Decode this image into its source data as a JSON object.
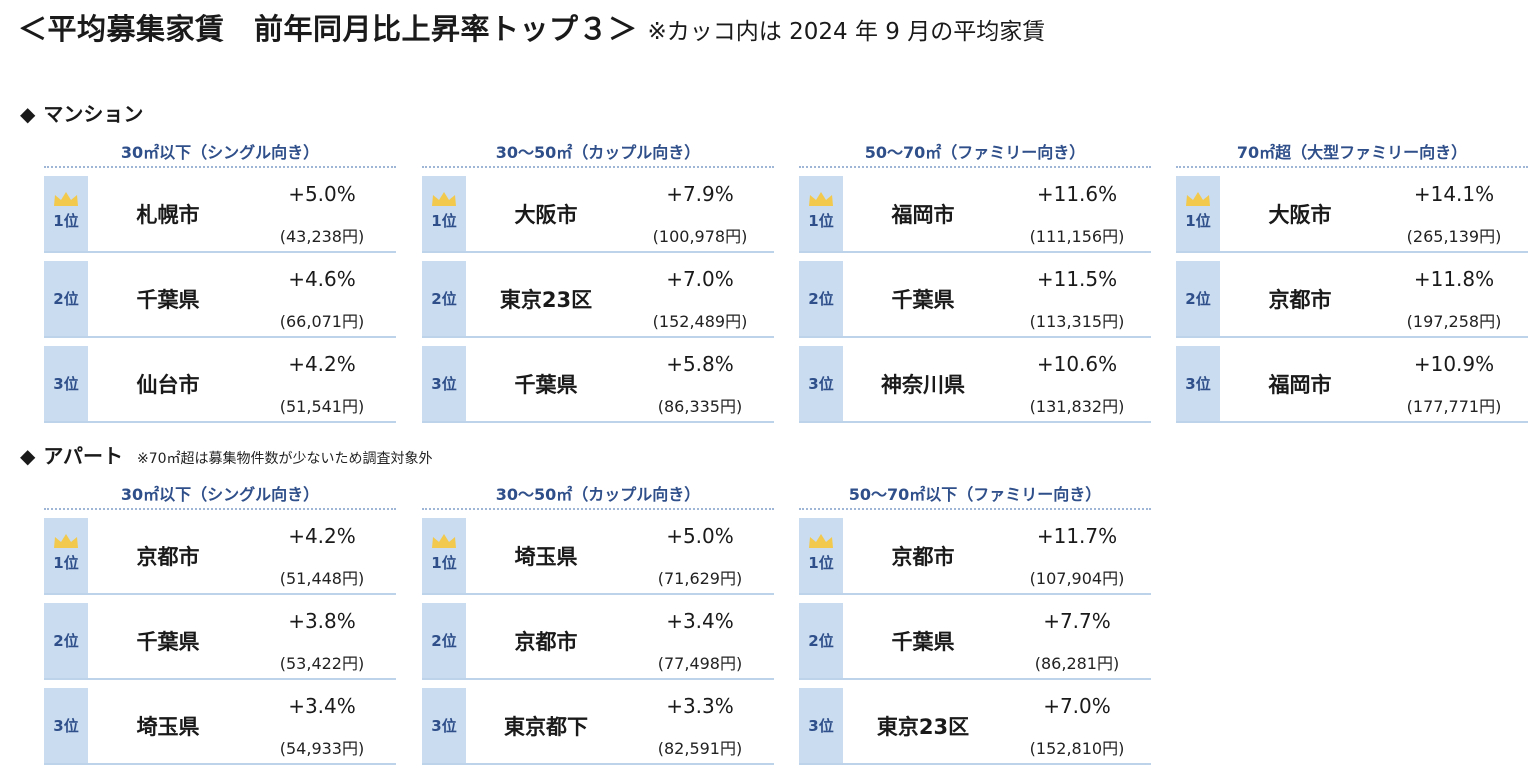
{
  "title": {
    "main": "＜平均募集家賃　前年同月比上昇率トップ３＞",
    "note": "※カッコ内は 2024 年 9 月の平均家賃"
  },
  "colors": {
    "accent": "#2f4f8a",
    "badge_bg": "#c9dcf0",
    "crown": "#f2c94c",
    "rule": "#bcd3ea"
  },
  "sections": [
    {
      "title": "マンション",
      "note": "",
      "groups": [
        {
          "header": "30㎡以下（シングル向き）",
          "rows": [
            {
              "rank": "1位",
              "name": "札幌市",
              "rate": "+5.0%",
              "rent": "(43,238円)"
            },
            {
              "rank": "2位",
              "name": "千葉県",
              "rate": "+4.6%",
              "rent": "(66,071円)"
            },
            {
              "rank": "3位",
              "name": "仙台市",
              "rate": "+4.2%",
              "rent": "(51,541円)"
            }
          ]
        },
        {
          "header": "30～50㎡（カップル向き）",
          "rows": [
            {
              "rank": "1位",
              "name": "大阪市",
              "rate": "+7.9%",
              "rent": "(100,978円)"
            },
            {
              "rank": "2位",
              "name": "東京23区",
              "rate": "+7.0%",
              "rent": "(152,489円)"
            },
            {
              "rank": "3位",
              "name": "千葉県",
              "rate": "+5.8%",
              "rent": "(86,335円)"
            }
          ]
        },
        {
          "header": "50～70㎡（ファミリー向き）",
          "rows": [
            {
              "rank": "1位",
              "name": "福岡市",
              "rate": "+11.6%",
              "rent": "(111,156円)"
            },
            {
              "rank": "2位",
              "name": "千葉県",
              "rate": "+11.5%",
              "rent": "(113,315円)"
            },
            {
              "rank": "3位",
              "name": "神奈川県",
              "rate": "+10.6%",
              "rent": "(131,832円)"
            }
          ]
        },
        {
          "header": "70㎡超（大型ファミリー向き）",
          "rows": [
            {
              "rank": "1位",
              "name": "大阪市",
              "rate": "+14.1%",
              "rent": "(265,139円)"
            },
            {
              "rank": "2位",
              "name": "京都市",
              "rate": "+11.8%",
              "rent": "(197,258円)"
            },
            {
              "rank": "3位",
              "name": "福岡市",
              "rate": "+10.9%",
              "rent": "(177,771円)"
            }
          ]
        }
      ]
    },
    {
      "title": "アパート",
      "note": "※70㎡超は募集物件数が少ないため調査対象外",
      "groups": [
        {
          "header": "30㎡以下（シングル向き）",
          "rows": [
            {
              "rank": "1位",
              "name": "京都市",
              "rate": "+4.2%",
              "rent": "(51,448円)"
            },
            {
              "rank": "2位",
              "name": "千葉県",
              "rate": "+3.8%",
              "rent": "(53,422円)"
            },
            {
              "rank": "3位",
              "name": "埼玉県",
              "rate": "+3.4%",
              "rent": "(54,933円)"
            }
          ]
        },
        {
          "header": "30～50㎡（カップル向き）",
          "rows": [
            {
              "rank": "1位",
              "name": "埼玉県",
              "rate": "+5.0%",
              "rent": "(71,629円)"
            },
            {
              "rank": "2位",
              "name": "京都市",
              "rate": "+3.4%",
              "rent": "(77,498円)"
            },
            {
              "rank": "3位",
              "name": "東京都下",
              "rate": "+3.3%",
              "rent": "(82,591円)"
            }
          ]
        },
        {
          "header": "50～70㎡以下（ファミリー向き）",
          "rows": [
            {
              "rank": "1位",
              "name": "京都市",
              "rate": "+11.7%",
              "rent": "(107,904円)"
            },
            {
              "rank": "2位",
              "name": "千葉県",
              "rate": "+7.7%",
              "rent": "(86,281円)"
            },
            {
              "rank": "3位",
              "name": "東京23区",
              "rate": "+7.0%",
              "rent": "(152,810円)"
            }
          ]
        }
      ]
    }
  ]
}
